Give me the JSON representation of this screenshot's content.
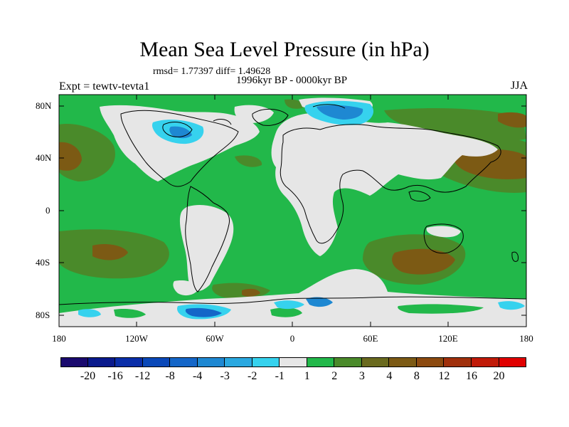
{
  "header": {
    "title": "Mean Sea Level Pressure (in hPa)",
    "stats": "rmsd= 1.77397 diff= 1.49628",
    "period": "1996kyr BP - 0000kyr BP",
    "experiment": "Expt = tewtv-tevta1",
    "season": "JJA"
  },
  "axes": {
    "lat_labels": [
      "80N",
      "40N",
      "0",
      "40S",
      "80S"
    ],
    "lon_labels": [
      "180",
      "120W",
      "60W",
      "0",
      "60E",
      "120E",
      "180"
    ]
  },
  "colorbar": {
    "labels": [
      "-20",
      "-16",
      "-12",
      "-8",
      "-4",
      "-3",
      "-2",
      "-1",
      "1",
      "2",
      "3",
      "4",
      "8",
      "12",
      "16",
      "20"
    ],
    "colors": [
      "#1a0a6e",
      "#0a1a8c",
      "#0a2ea8",
      "#0a48b8",
      "#1466c8",
      "#1e88d2",
      "#2aa8e0",
      "#36d2ee",
      "#e6e6e6",
      "#22b84a",
      "#4a8a2a",
      "#6a6a1e",
      "#7c5a14",
      "#8c4a10",
      "#a0300c",
      "#c01a08",
      "#e00000"
    ]
  },
  "colors": {
    "ocean_green": "#22b84a",
    "land_gray": "#e6e6e6",
    "dark_olive": "#4a8a2a",
    "brown": "#7c5a14",
    "blue": "#1e88d2",
    "cyan": "#36d2ee"
  }
}
